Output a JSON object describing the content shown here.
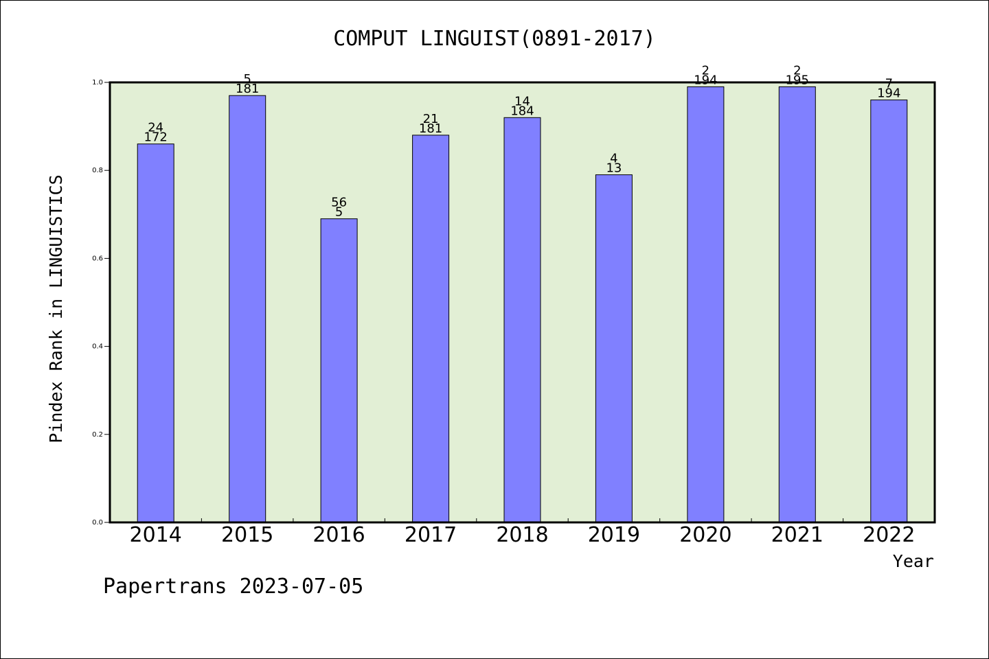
{
  "chart_data": {
    "type": "bar",
    "title": "COMPUT LINGUIST(0891-2017)",
    "xlabel": "Year",
    "ylabel": "Pindex Rank in LINGUISTICS",
    "footer": "Papertrans 2023-07-05",
    "categories": [
      "2014",
      "2015",
      "2016",
      "2017",
      "2018",
      "2019",
      "2020",
      "2021",
      "2022"
    ],
    "values": [
      0.86,
      0.97,
      0.69,
      0.88,
      0.92,
      0.79,
      0.99,
      0.99,
      0.96
    ],
    "rank_labels": [
      "24",
      "5",
      "56",
      "21",
      "14",
      "4",
      "2",
      "2",
      "7"
    ],
    "total_labels": [
      "172",
      "181",
      "5",
      "181",
      "184",
      "13",
      "194",
      "195",
      "194"
    ],
    "ylim": [
      0,
      1.0
    ],
    "yticks": [
      "0.0",
      "0.2",
      "0.4",
      "0.6",
      "0.8",
      "1.0"
    ],
    "colors": {
      "bar": "#8080ff",
      "plot_background": "#e2efd5"
    },
    "grid": false,
    "legend": "none"
  }
}
